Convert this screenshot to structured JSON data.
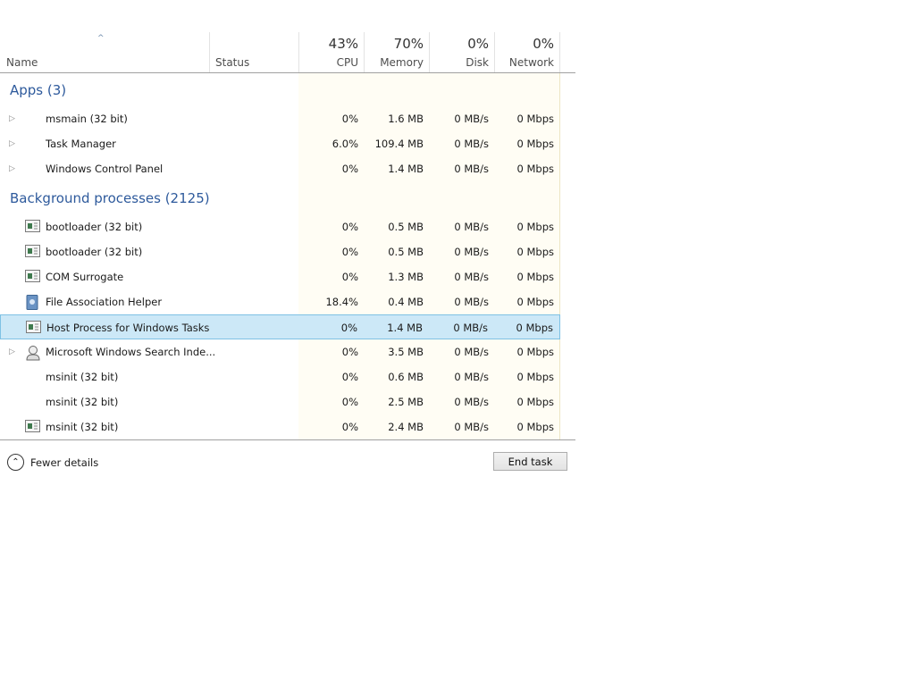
{
  "columns": {
    "name": "Name",
    "status": "Status",
    "cpu": {
      "label": "CPU",
      "total": "43%"
    },
    "memory": {
      "label": "Memory",
      "total": "70%"
    },
    "disk": {
      "label": "Disk",
      "total": "0%"
    },
    "network": {
      "label": "Network",
      "total": "0%"
    }
  },
  "groups": [
    {
      "title": "Apps (3)",
      "rows": [
        {
          "name": "msmain (32 bit)",
          "icon": "none",
          "expandable": true,
          "cpu": "0%",
          "memory": "1.6 MB",
          "disk": "0 MB/s",
          "network": "0 Mbps"
        },
        {
          "name": "Task Manager",
          "icon": "none",
          "expandable": true,
          "cpu": "6.0%",
          "memory": "109.4 MB",
          "disk": "0 MB/s",
          "network": "0 Mbps"
        },
        {
          "name": "Windows Control Panel",
          "icon": "none",
          "expandable": true,
          "cpu": "0%",
          "memory": "1.4 MB",
          "disk": "0 MB/s",
          "network": "0 Mbps"
        }
      ]
    },
    {
      "title": "Background processes (2125)",
      "rows": [
        {
          "name": "bootloader (32 bit)",
          "icon": "window-icon",
          "cpu": "0%",
          "memory": "0.5 MB",
          "disk": "0 MB/s",
          "network": "0 Mbps"
        },
        {
          "name": "bootloader (32 bit)",
          "icon": "window-icon",
          "cpu": "0%",
          "memory": "0.5 MB",
          "disk": "0 MB/s",
          "network": "0 Mbps"
        },
        {
          "name": "COM Surrogate",
          "icon": "window-icon",
          "cpu": "0%",
          "memory": "1.3 MB",
          "disk": "0 MB/s",
          "network": "0 Mbps"
        },
        {
          "name": "File Association Helper",
          "icon": "file-helper-icon",
          "cpu": "18.4%",
          "memory": "0.4 MB",
          "disk": "0 MB/s",
          "network": "0 Mbps"
        },
        {
          "name": "Host Process for Windows Tasks",
          "icon": "window-icon",
          "selected": true,
          "cpu": "0%",
          "memory": "1.4 MB",
          "disk": "0 MB/s",
          "network": "0 Mbps"
        },
        {
          "name": "Microsoft Windows Search Inde...",
          "icon": "search-indexer-icon",
          "expandable": true,
          "cpu": "0%",
          "memory": "3.5 MB",
          "disk": "0 MB/s",
          "network": "0 Mbps"
        },
        {
          "name": "msinit (32 bit)",
          "icon": "none",
          "cpu": "0%",
          "memory": "0.6 MB",
          "disk": "0 MB/s",
          "network": "0 Mbps"
        },
        {
          "name": "msinit (32 bit)",
          "icon": "none",
          "cpu": "0%",
          "memory": "2.5 MB",
          "disk": "0 MB/s",
          "network": "0 Mbps"
        },
        {
          "name": "msinit (32 bit)",
          "icon": "window-icon",
          "cpu": "0%",
          "memory": "2.4 MB",
          "disk": "0 MB/s",
          "network": "0 Mbps"
        }
      ]
    }
  ],
  "footer": {
    "fewer_details": "Fewer details",
    "end_task": "End task"
  },
  "colors": {
    "group_title": "#2e5a9c",
    "selected_row": "#cce8f7",
    "column_tint": "#fffdf4"
  }
}
